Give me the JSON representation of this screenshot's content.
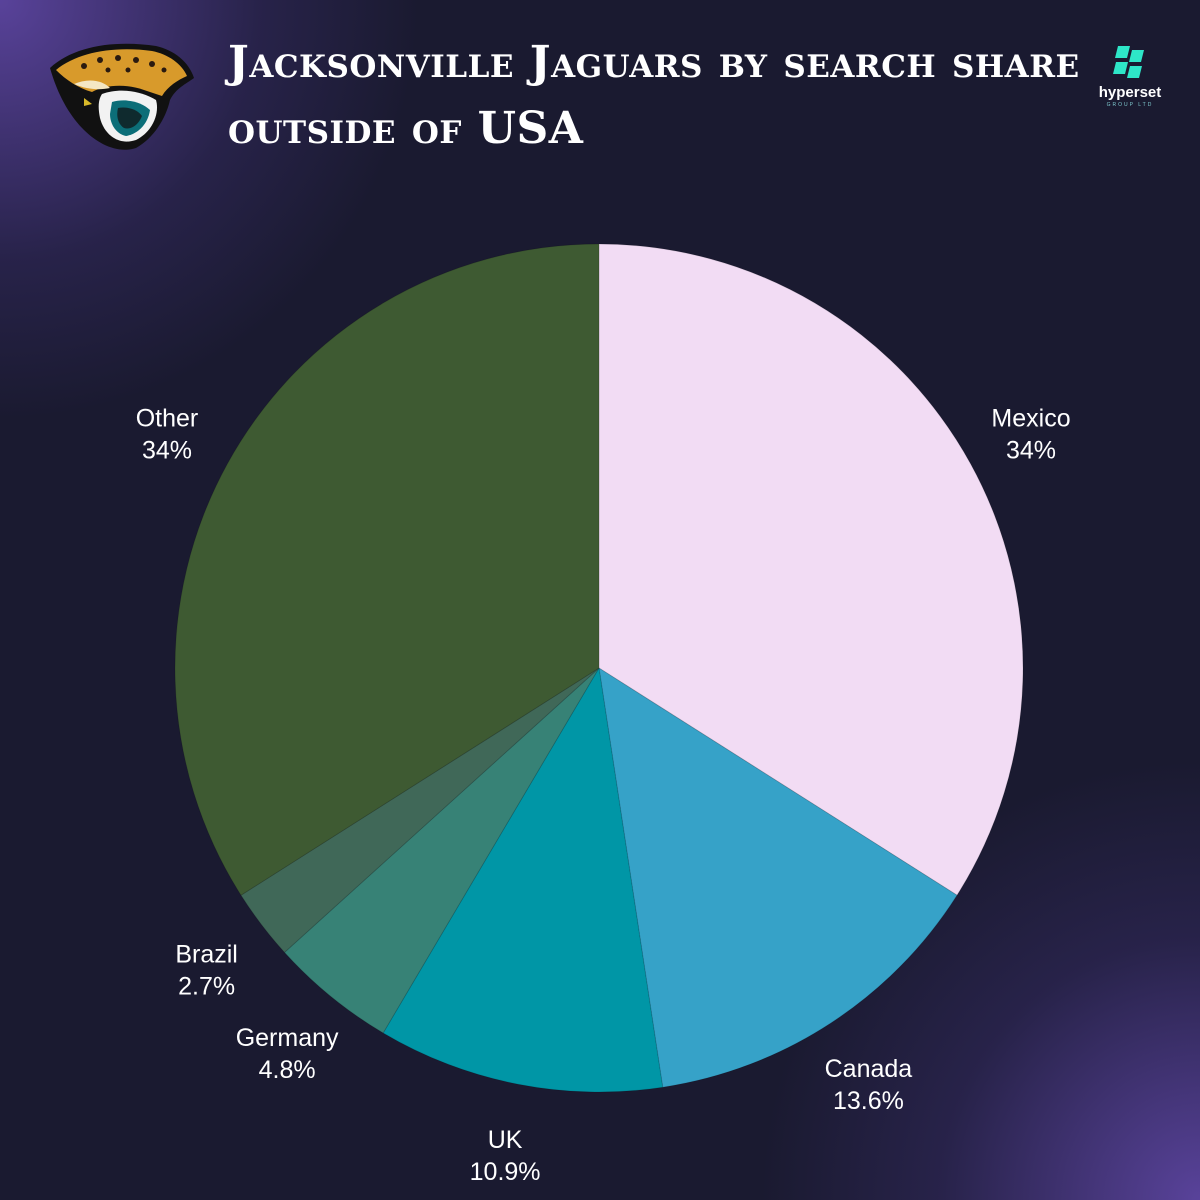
{
  "header": {
    "title": "Jacksonville Jaguars by search share outside of USA",
    "team_logo_icon": "jaguar-head-icon",
    "brand": {
      "name": "hyperset",
      "subtitle": "GROUP LTD",
      "icon": "hyperset-logo-icon",
      "color": "#2ee6c8"
    }
  },
  "colors": {
    "background": "#1a1a30",
    "glow": "#6e50be"
  },
  "chart_data": {
    "type": "pie",
    "title": "Jacksonville Jaguars by search share outside of USA",
    "unit": "%",
    "start_angle_deg": 0,
    "direction": "clockwise",
    "slices": [
      {
        "label": "Mexico",
        "value": 34,
        "display": "34%",
        "color": "#f2dcf4"
      },
      {
        "label": "Canada",
        "value": 13.6,
        "display": "13.6%",
        "color": "#36a2c8"
      },
      {
        "label": "UK",
        "value": 10.9,
        "display": "10.9%",
        "color": "#0096a6"
      },
      {
        "label": "Germany",
        "value": 4.8,
        "display": "4.8%",
        "color": "#378276"
      },
      {
        "label": "Brazil",
        "value": 2.7,
        "display": "2.7%",
        "color": "#406858"
      },
      {
        "label": "Other",
        "value": 34,
        "display": "34%",
        "color": "#3e5a32"
      }
    ]
  }
}
